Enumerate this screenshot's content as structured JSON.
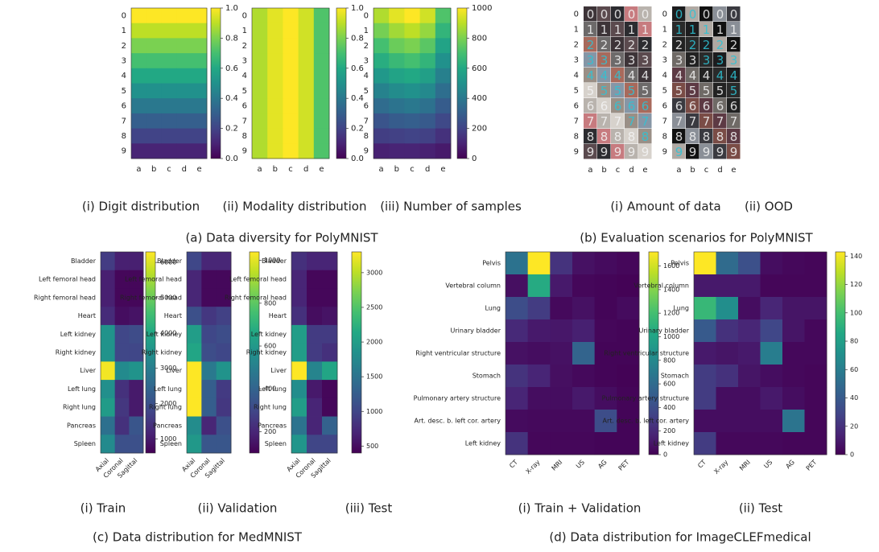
{
  "figure_captions": [
    "(a) Data diversity for PolyMNIST",
    "(b) Evaluation scenarios for PolyMNIST",
    "(c) Data distribution for MedMNIST",
    "(d) Data distribution for ImageCLEFmedical"
  ],
  "chart_data": [
    {
      "type": "heatmap",
      "caption": "(i) Digit distribution",
      "colormap": "viridis",
      "categories": [
        "a",
        "b",
        "c",
        "d",
        "e"
      ],
      "rows": [
        "0",
        "1",
        "2",
        "3",
        "4",
        "5",
        "6",
        "7",
        "8",
        "9"
      ],
      "values": [
        [
          1,
          1,
          1,
          1,
          1
        ],
        [
          0.9,
          0.9,
          0.9,
          0.9,
          0.9
        ],
        [
          0.8,
          0.8,
          0.8,
          0.8,
          0.8
        ],
        [
          0.7,
          0.7,
          0.7,
          0.7,
          0.7
        ],
        [
          0.6,
          0.6,
          0.6,
          0.6,
          0.6
        ],
        [
          0.5,
          0.5,
          0.5,
          0.5,
          0.5
        ],
        [
          0.4,
          0.4,
          0.4,
          0.4,
          0.4
        ],
        [
          0.3,
          0.3,
          0.3,
          0.3,
          0.3
        ],
        [
          0.2,
          0.2,
          0.2,
          0.2,
          0.2
        ],
        [
          0.1,
          0.1,
          0.1,
          0.1,
          0.1
        ]
      ],
      "zlim": [
        0,
        1
      ],
      "zticks": [
        {
          "value": 0,
          "label": "0.0"
        },
        0.2,
        0.4,
        0.6,
        0.8,
        {
          "value": 1,
          "label": "1.0"
        }
      ]
    },
    {
      "type": "heatmap",
      "caption": "(ii) Modality distribution",
      "colormap": "viridis",
      "categories": [
        "a",
        "b",
        "c",
        "d",
        "e"
      ],
      "rows": [
        "0",
        "1",
        "2",
        "3",
        "4",
        "5",
        "6",
        "7",
        "8",
        "9"
      ],
      "values": [
        [
          0.88,
          0.96,
          1,
          0.93,
          0.72
        ],
        [
          0.88,
          0.96,
          1,
          0.93,
          0.72
        ],
        [
          0.88,
          0.96,
          1,
          0.93,
          0.72
        ],
        [
          0.88,
          0.96,
          1,
          0.93,
          0.72
        ],
        [
          0.88,
          0.96,
          1,
          0.93,
          0.72
        ],
        [
          0.88,
          0.96,
          1,
          0.93,
          0.72
        ],
        [
          0.88,
          0.96,
          1,
          0.93,
          0.72
        ],
        [
          0.88,
          0.96,
          1,
          0.93,
          0.72
        ],
        [
          0.88,
          0.96,
          1,
          0.93,
          0.72
        ],
        [
          0.88,
          0.96,
          1,
          0.93,
          0.72
        ]
      ],
      "zlim": [
        0,
        1
      ],
      "zticks": [
        {
          "value": 0,
          "label": "0.0"
        },
        0.2,
        0.4,
        0.6,
        0.8,
        {
          "value": 1,
          "label": "1.0"
        }
      ]
    },
    {
      "type": "heatmap",
      "caption": "(iii) Number of samples",
      "colormap": "viridis",
      "categories": [
        "a",
        "b",
        "c",
        "d",
        "e"
      ],
      "rows": [
        "0",
        "1",
        "2",
        "3",
        "4",
        "5",
        "6",
        "7",
        "8",
        "9"
      ],
      "values": [
        [
          880,
          960,
          1000,
          930,
          720
        ],
        [
          790,
          860,
          900,
          840,
          650
        ],
        [
          700,
          770,
          800,
          740,
          580
        ],
        [
          620,
          670,
          700,
          650,
          500
        ],
        [
          530,
          580,
          600,
          560,
          430
        ],
        [
          440,
          480,
          500,
          470,
          360
        ],
        [
          350,
          380,
          400,
          370,
          290
        ],
        [
          260,
          290,
          300,
          280,
          220
        ],
        [
          180,
          190,
          200,
          190,
          140
        ],
        [
          90,
          100,
          100,
          90,
          70
        ]
      ],
      "zlim": [
        0,
        1000
      ],
      "zticks": [
        0,
        200,
        400,
        600,
        800,
        1000
      ]
    },
    {
      "type": "image-grid",
      "caption": "(i) Amount of data",
      "categories": [
        "a",
        "b",
        "c",
        "d",
        "e"
      ],
      "rows": [
        "0",
        "1",
        "2",
        "3",
        "4",
        "5",
        "6",
        "7",
        "8",
        "9"
      ]
    },
    {
      "type": "image-grid",
      "caption": "(ii) OOD",
      "categories": [
        "a",
        "b",
        "c",
        "d",
        "e"
      ],
      "rows": [
        "0",
        "1",
        "2",
        "3",
        "4",
        "5",
        "6",
        "7",
        "8",
        "9"
      ]
    },
    {
      "type": "heatmap",
      "caption": "(i) Train",
      "colormap": "viridis",
      "categories": [
        "Axial",
        "Coronal",
        "Sagittal"
      ],
      "rows": [
        "Bladder",
        "Left femoral head",
        "Right femoral head",
        "Heart",
        "Left kidney",
        "Right kidney",
        "Liver",
        "Left lung",
        "Right lung",
        "Pancreas",
        "Spleen"
      ],
      "values": [
        [
          1600,
          1100,
          1100
        ],
        [
          1100,
          700,
          700
        ],
        [
          1100,
          700,
          700
        ],
        [
          1300,
          800,
          900
        ],
        [
          3500,
          1800,
          1900
        ],
        [
          3500,
          1800,
          1800
        ],
        [
          6200,
          3300,
          3500
        ],
        [
          3400,
          1400,
          1000
        ],
        [
          3700,
          1500,
          1000
        ],
        [
          2700,
          1400,
          2100
        ],
        [
          3300,
          2000,
          2000
        ]
      ],
      "zlim": [
        600,
        6300
      ],
      "zticks": [
        1000,
        2000,
        3000,
        4000,
        5000,
        6000
      ]
    },
    {
      "type": "heatmap",
      "caption": "(ii) Validation",
      "colormap": "viridis",
      "categories": [
        "Axial",
        "Coronal",
        "Sagittal"
      ],
      "rows": [
        "Bladder",
        "Left femoral head",
        "Right femoral head",
        "Heart",
        "Left kidney",
        "Right kidney",
        "Liver",
        "Left lung",
        "Right lung",
        "Pancreas",
        "Spleen"
      ],
      "values": [
        [
          300,
          200,
          200
        ],
        [
          200,
          120,
          120
        ],
        [
          200,
          120,
          120
        ],
        [
          330,
          250,
          280
        ],
        [
          620,
          300,
          320
        ],
        [
          650,
          320,
          300
        ],
        [
          1040,
          480,
          580
        ],
        [
          1040,
          380,
          260
        ],
        [
          1040,
          380,
          250
        ],
        [
          550,
          200,
          330
        ],
        [
          600,
          350,
          350
        ]
      ],
      "zlim": [
        100,
        1040
      ],
      "zticks": [
        200,
        400,
        600,
        800,
        1000
      ]
    },
    {
      "type": "heatmap",
      "caption": "(iii) Test",
      "colormap": "viridis",
      "categories": [
        "Axial",
        "Coronal",
        "Sagittal"
      ],
      "rows": [
        "Bladder",
        "Left femoral head",
        "Right femoral head",
        "Heart",
        "Left kidney",
        "Right kidney",
        "Liver",
        "Left lung",
        "Right lung",
        "Pancreas",
        "Spleen"
      ],
      "values": [
        [
          800,
          700,
          700
        ],
        [
          700,
          450,
          450
        ],
        [
          700,
          450,
          450
        ],
        [
          800,
          500,
          550
        ],
        [
          2000,
          900,
          900
        ],
        [
          2000,
          900,
          800
        ],
        [
          3300,
          1700,
          2100
        ],
        [
          1800,
          600,
          450
        ],
        [
          2000,
          700,
          450
        ],
        [
          1500,
          700,
          1300
        ],
        [
          1900,
          1000,
          1000
        ]
      ],
      "zlim": [
        400,
        3300
      ],
      "zticks": [
        500,
        1000,
        1500,
        2000,
        2500,
        3000
      ]
    },
    {
      "type": "heatmap",
      "caption": "(i) Train + Validation",
      "colormap": "viridis",
      "categories": [
        "CT",
        "X-ray",
        "MRI",
        "US",
        "AG",
        "PET"
      ],
      "rows": [
        "Pelvis",
        "Vertebral column",
        "Lung",
        "Urinary bladder",
        "Right ventricular structure",
        "Stomach",
        "Pulmonary artery structure",
        "Art. desc. b. left cor. artery",
        "Left kidney"
      ],
      "values": [
        [
          650,
          1720,
          250,
          80,
          50,
          30
        ],
        [
          70,
          1050,
          120,
          30,
          20,
          10
        ],
        [
          400,
          300,
          40,
          80,
          20,
          50
        ],
        [
          200,
          120,
          110,
          150,
          30,
          20
        ],
        [
          80,
          60,
          80,
          550,
          20,
          20
        ],
        [
          250,
          180,
          70,
          40,
          20,
          10
        ],
        [
          180,
          60,
          60,
          120,
          60,
          20
        ],
        [
          50,
          40,
          40,
          40,
          400,
          20
        ],
        [
          250,
          30,
          30,
          30,
          20,
          20
        ]
      ],
      "zlim": [
        0,
        1720
      ],
      "zticks": [
        0,
        200,
        400,
        600,
        800,
        1000,
        1200,
        1400,
        1600
      ]
    },
    {
      "type": "heatmap",
      "caption": "(ii) Test",
      "colormap": "viridis",
      "categories": [
        "CT",
        "X-ray",
        "MRI",
        "US",
        "AG",
        "PET"
      ],
      "rows": [
        "Pelvis",
        "Vertebral column",
        "Lung",
        "Urinary bladder",
        "Right ventricular structure",
        "Stomach",
        "Pulmonary artery structure",
        "Art. desc. b. left cor. artery",
        "Left kidney"
      ],
      "values": [
        [
          143,
          50,
          35,
          5,
          3,
          2
        ],
        [
          10,
          10,
          10,
          2,
          2,
          2
        ],
        [
          95,
          70,
          5,
          15,
          8,
          8
        ],
        [
          40,
          20,
          15,
          30,
          8,
          3
        ],
        [
          10,
          8,
          10,
          60,
          3,
          3
        ],
        [
          25,
          20,
          8,
          5,
          3,
          2
        ],
        [
          25,
          5,
          5,
          10,
          5,
          2
        ],
        [
          5,
          5,
          5,
          5,
          55,
          2
        ],
        [
          25,
          3,
          3,
          3,
          2,
          2
        ]
      ],
      "zlim": [
        0,
        143
      ],
      "zticks": [
        0,
        20,
        40,
        60,
        80,
        100,
        120,
        140
      ]
    }
  ]
}
